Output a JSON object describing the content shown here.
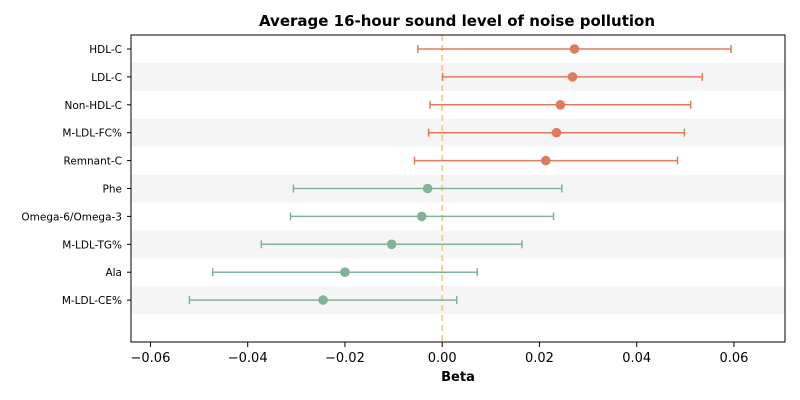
{
  "chart_data": {
    "type": "scatter",
    "title": "Average 16-hour sound level of noise pollution",
    "xlabel": "Beta",
    "ylabel": "",
    "xlim": [
      -0.064,
      0.0705
    ],
    "xticks": [
      "−0.06",
      "−0.04",
      "−0.02",
      "0.00",
      "0.02",
      "0.04",
      "0.06"
    ],
    "xtick_values": [
      -0.06,
      -0.04,
      -0.02,
      0.0,
      0.02,
      0.04,
      0.06
    ],
    "reference_line": 0.0,
    "grid": false,
    "striped_rows": true,
    "colors": {
      "positive": "#E07A5F",
      "negative": "#81B29A",
      "reference": "#F2CC8F",
      "stripe": "#F5F5F5"
    },
    "points": [
      {
        "label": "HDL-C",
        "beta": 0.0272,
        "lower": -0.005,
        "upper": 0.0594
      },
      {
        "label": "LDL-C",
        "beta": 0.0268,
        "lower": 0.0001,
        "upper": 0.0535
      },
      {
        "label": "Non-HDL-C",
        "beta": 0.0243,
        "lower": -0.0025,
        "upper": 0.0511
      },
      {
        "label": "M-LDL-FC%",
        "beta": 0.0235,
        "lower": -0.0028,
        "upper": 0.0498
      },
      {
        "label": "Remnant-C",
        "beta": 0.0213,
        "lower": -0.0057,
        "upper": 0.0484
      },
      {
        "label": "Phe",
        "beta": -0.003,
        "lower": -0.0306,
        "upper": 0.0246
      },
      {
        "label": "Omega-6/Omega-3",
        "beta": -0.0042,
        "lower": -0.0312,
        "upper": 0.0229
      },
      {
        "label": "M-LDL-TG%",
        "beta": -0.0104,
        "lower": -0.0372,
        "upper": 0.0164
      },
      {
        "label": "Ala",
        "beta": -0.02,
        "lower": -0.0472,
        "upper": 0.0072
      },
      {
        "label": "M-LDL-CE%",
        "beta": -0.0245,
        "lower": -0.052,
        "upper": 0.003
      }
    ]
  }
}
